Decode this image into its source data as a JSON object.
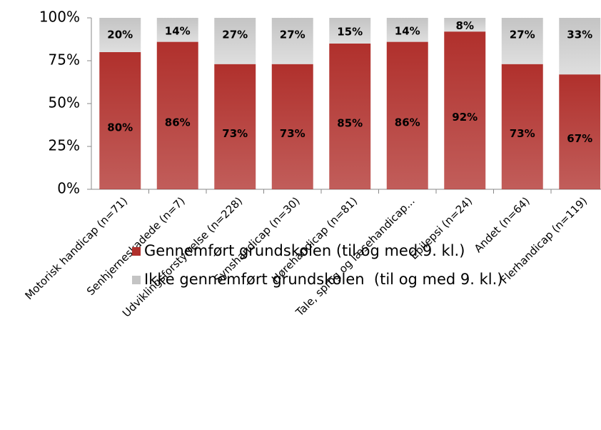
{
  "chart_data": {
    "type": "bar",
    "stacked": true,
    "categories": [
      "Motorisk handicap (n=71)",
      "Senhjerneskadede (n=7)",
      "Udviklingsforstyrrelse (n=228)",
      "Synshandicap (n=30)",
      "Hørehandicap (n=81)",
      "Tale, sprog og læsehandicap...",
      "Epilepsi (n=24)",
      "Andet (n=64)",
      "Flerhandicap (n=119)"
    ],
    "series": [
      {
        "name": "Gennemført grundskolen (til og med 9. kl.)",
        "color": "#b0302c",
        "values": [
          80,
          86,
          73,
          73,
          85,
          86,
          92,
          73,
          67
        ],
        "value_labels": [
          "80%",
          "86%",
          "73%",
          "73%",
          "85%",
          "86%",
          "92%",
          "73%",
          "67%"
        ]
      },
      {
        "name": "Ikke gennemført grundskolen  (til og med 9. kl.)",
        "color": "#c4c4c4",
        "values": [
          20,
          14,
          27,
          27,
          15,
          14,
          8,
          27,
          33
        ],
        "value_labels": [
          "20%",
          "14%",
          "27%",
          "27%",
          "15%",
          "14%",
          "8%",
          "27%",
          "33%"
        ]
      }
    ],
    "ylim": [
      0,
      100
    ],
    "yticks": [
      {
        "value": 0,
        "label": "0%"
      },
      {
        "value": 25,
        "label": "25%"
      },
      {
        "value": 50,
        "label": "50%"
      },
      {
        "value": 75,
        "label": "75%"
      },
      {
        "value": 100,
        "label": "100%"
      }
    ],
    "legend": "bottom"
  }
}
